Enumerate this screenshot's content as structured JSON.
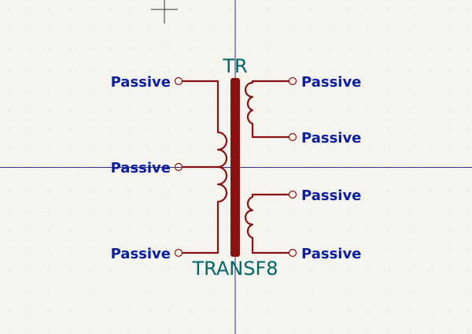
{
  "colors": {
    "background": "#f5f4ef",
    "grid_dot": "#c9c8c3",
    "crosshair": "#2d2f8a",
    "wire": "#8b1111",
    "core": "#8b1111",
    "pin_label": "#0b1ea4",
    "ref_label": "#006666",
    "cursor": "#333333"
  },
  "symbol": {
    "reference": "TR",
    "value": "TRANSF8"
  },
  "pins": {
    "p1": "Passive",
    "p2": "Passive",
    "p3": "Passive",
    "p4": "Passive",
    "p5": "Passive",
    "p6": "Passive",
    "p7": "Passive"
  }
}
